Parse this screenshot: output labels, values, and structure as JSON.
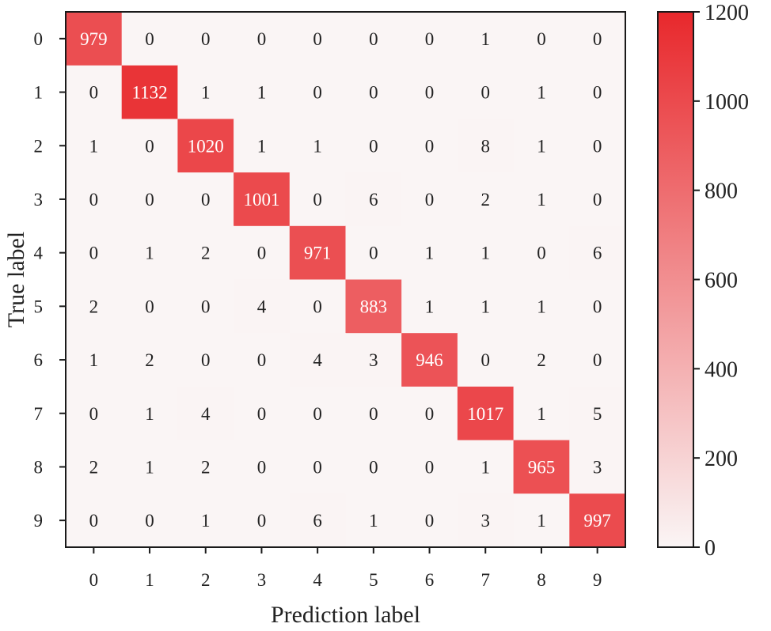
{
  "chart_data": {
    "type": "heatmap",
    "title": "",
    "xlabel": "Prediction label",
    "ylabel": "True label",
    "x_categories": [
      "0",
      "1",
      "2",
      "3",
      "4",
      "5",
      "6",
      "7",
      "8",
      "9"
    ],
    "y_categories": [
      "0",
      "1",
      "2",
      "3",
      "4",
      "5",
      "6",
      "7",
      "8",
      "9"
    ],
    "matrix": [
      [
        979,
        0,
        0,
        0,
        0,
        0,
        0,
        1,
        0,
        0
      ],
      [
        0,
        1132,
        1,
        1,
        0,
        0,
        0,
        0,
        1,
        0
      ],
      [
        1,
        0,
        1020,
        1,
        1,
        0,
        0,
        8,
        1,
        0
      ],
      [
        0,
        0,
        0,
        1001,
        0,
        6,
        0,
        2,
        1,
        0
      ],
      [
        0,
        1,
        2,
        0,
        971,
        0,
        1,
        1,
        0,
        6
      ],
      [
        2,
        0,
        0,
        4,
        0,
        883,
        1,
        1,
        1,
        0
      ],
      [
        1,
        2,
        0,
        0,
        4,
        3,
        946,
        0,
        2,
        0
      ],
      [
        0,
        1,
        4,
        0,
        0,
        0,
        0,
        1017,
        1,
        5
      ],
      [
        2,
        1,
        2,
        0,
        0,
        0,
        0,
        1,
        965,
        3
      ],
      [
        0,
        0,
        1,
        0,
        6,
        1,
        0,
        3,
        1,
        997
      ]
    ],
    "colorbar": {
      "range": [
        0,
        1200
      ],
      "ticks": [
        0,
        200,
        400,
        600,
        800,
        1000,
        1200
      ],
      "low_color": "#faf5f5",
      "high_color": "#e8282c"
    },
    "grid": false,
    "legend": "colorbar-right"
  }
}
